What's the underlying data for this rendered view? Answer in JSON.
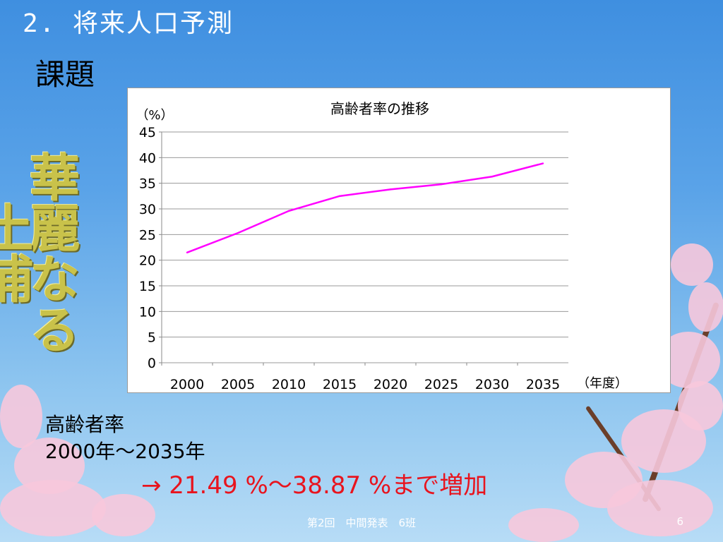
{
  "slide": {
    "title": "2. 将来人口予測",
    "heading": "課題",
    "vertical_art_text": "華麗なる土浦",
    "stat_label": "高齢者率",
    "stat_range": "2000年～2035年",
    "stat_result": "→  21.49 %～38.87 %まで増加",
    "footer": "第2回　中間発表　6班",
    "page_number": "6"
  },
  "colors": {
    "line": "#ff00ff",
    "result_text": "#e8141e",
    "background_top": "#3f8fe0",
    "blossom": "#f7c8dc"
  },
  "chart_data": {
    "type": "line",
    "title": "高齢者率の推移",
    "ylabel": "（%）",
    "xlabel": "（年度）",
    "categories": [
      "2000",
      "2005",
      "2010",
      "2015",
      "2020",
      "2025",
      "2030",
      "2035"
    ],
    "series": [
      {
        "values": [
          21.49,
          25.3,
          29.6,
          32.5,
          33.8,
          34.8,
          36.3,
          38.87
        ]
      }
    ],
    "ylim": [
      0,
      45
    ],
    "yticks": [
      0,
      5,
      10,
      15,
      20,
      25,
      30,
      35,
      40,
      45
    ],
    "grid": true,
    "legend": "none"
  }
}
